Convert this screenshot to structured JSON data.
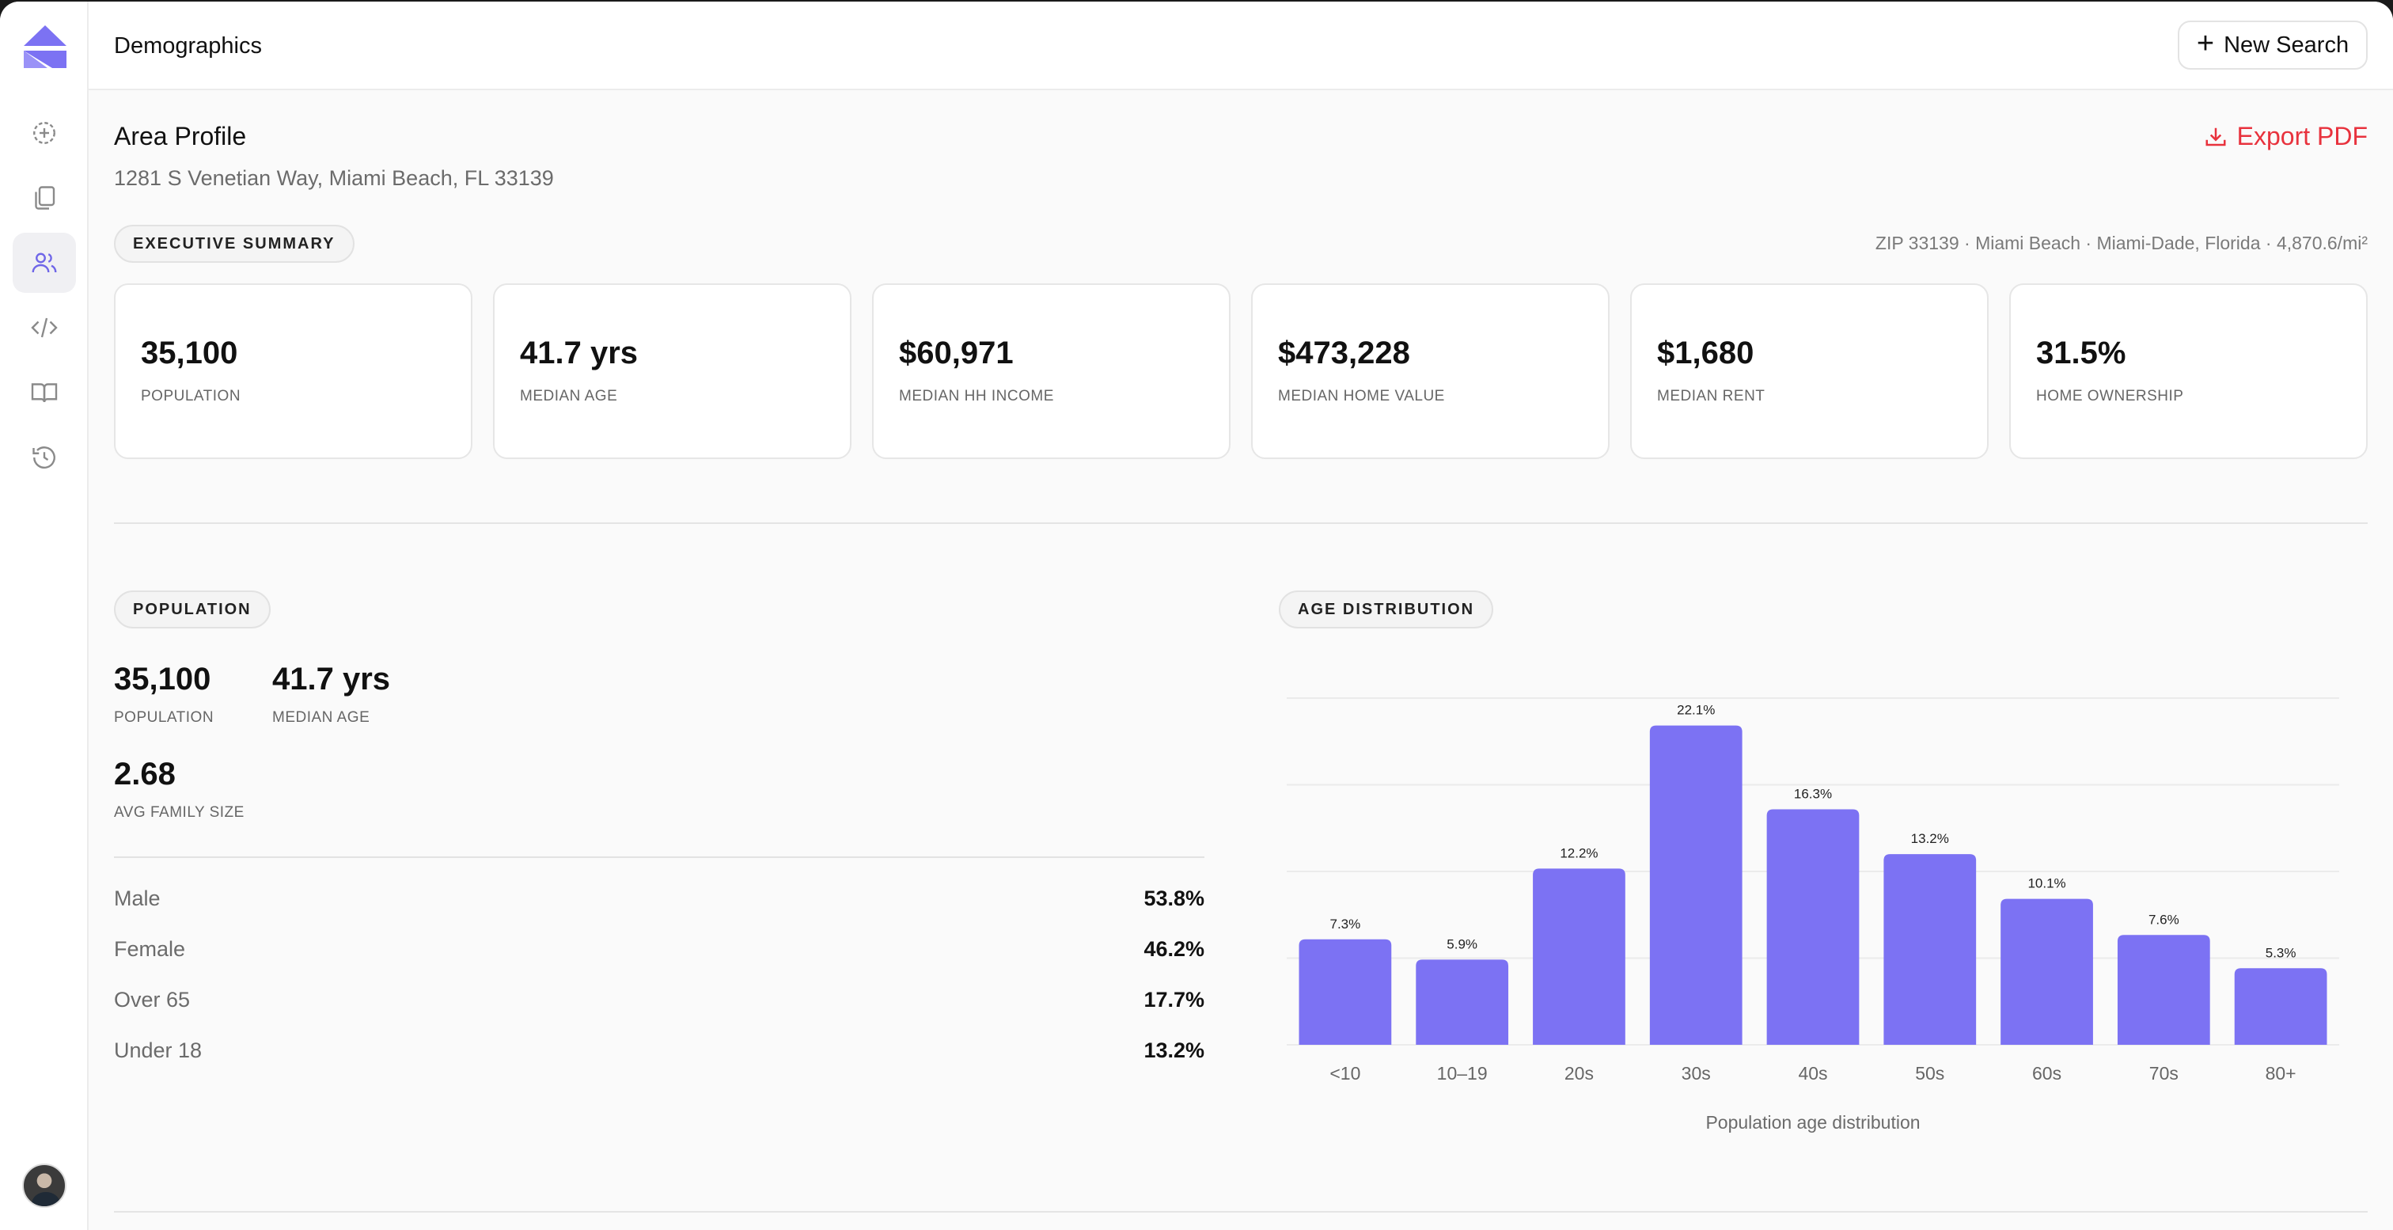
{
  "header": {
    "title": "Demographics",
    "new_search_label": "New Search"
  },
  "sidebar": {
    "items": [
      {
        "name": "new-search-icon"
      },
      {
        "name": "documents-icon"
      },
      {
        "name": "users-icon",
        "active": true
      },
      {
        "name": "code-icon"
      },
      {
        "name": "book-icon"
      },
      {
        "name": "history-icon"
      }
    ]
  },
  "profile": {
    "title": "Area Profile",
    "address": "1281 S Venetian Way, Miami Beach, FL 33139",
    "export_label": "Export PDF"
  },
  "executive_summary": {
    "label": "EXECUTIVE SUMMARY",
    "meta": "ZIP 33139 · Miami Beach · Miami-Dade, Florida · 4,870.6/mi²",
    "cards": [
      {
        "value": "35,100",
        "label": "POPULATION"
      },
      {
        "value": "41.7 yrs",
        "label": "MEDIAN AGE"
      },
      {
        "value": "$60,971",
        "label": "MEDIAN HH INCOME"
      },
      {
        "value": "$473,228",
        "label": "MEDIAN HOME VALUE"
      },
      {
        "value": "$1,680",
        "label": "MEDIAN RENT"
      },
      {
        "value": "31.5%",
        "label": "HOME OWNERSHIP"
      }
    ]
  },
  "population": {
    "label": "POPULATION",
    "stats": [
      {
        "value": "35,100",
        "label": "POPULATION"
      },
      {
        "value": "41.7 yrs",
        "label": "MEDIAN AGE"
      },
      {
        "value": "2.68",
        "label": "AVG FAMILY SIZE"
      }
    ],
    "rows": [
      {
        "label": "Male",
        "value": "53.8%"
      },
      {
        "label": "Female",
        "value": "46.2%"
      },
      {
        "label": "Over 65",
        "value": "17.7%"
      },
      {
        "label": "Under 18",
        "value": "13.2%"
      }
    ]
  },
  "age_distribution": {
    "label": "AGE DISTRIBUTION"
  },
  "chart_data": {
    "type": "bar",
    "title": "",
    "xlabel": "Population age distribution",
    "ylabel": "",
    "categories": [
      "<10",
      "10–19",
      "20s",
      "30s",
      "40s",
      "50s",
      "60s",
      "70s",
      "80+"
    ],
    "values": [
      7.3,
      5.9,
      12.2,
      22.1,
      16.3,
      13.2,
      10.1,
      7.6,
      5.3
    ],
    "data_labels": [
      "7.3%",
      "5.9%",
      "12.2%",
      "22.1%",
      "16.3%",
      "13.2%",
      "10.1%",
      "7.6%",
      "5.3%"
    ],
    "ylim": [
      0,
      24
    ],
    "grid": true,
    "bar_color": "#7c72f3"
  },
  "colors": {
    "accent": "#7c72f3",
    "export": "#e8323d"
  }
}
